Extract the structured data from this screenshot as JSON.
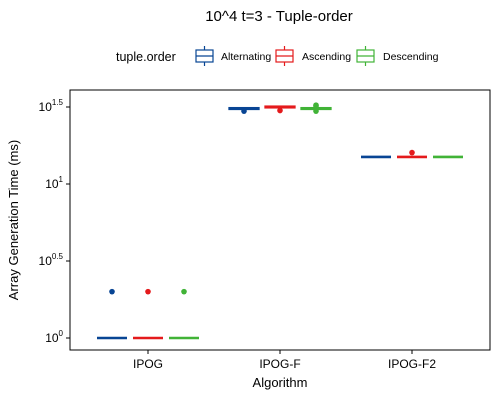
{
  "chart_data": {
    "type": "boxplot",
    "title": "10^4 t=3 - Tuple-order",
    "xlabel": "Algorithm",
    "ylabel": "Array Generation Time (ms)",
    "y_scale": "log10",
    "ylim_log10": [
      0,
      1.5
    ],
    "yticks": [
      {
        "base": "10",
        "exp": "0",
        "value_log10": 0
      },
      {
        "base": "10",
        "exp": "0.5",
        "value_log10": 0.5
      },
      {
        "base": "10",
        "exp": "1",
        "value_log10": 1
      },
      {
        "base": "10",
        "exp": "1.5",
        "value_log10": 1.5
      }
    ],
    "grid": false,
    "legend": {
      "title": "tuple.order",
      "placement": "top",
      "entries": [
        "Alternating",
        "Ascending",
        "Descending"
      ]
    },
    "categories": [
      "IPOG",
      "IPOG-F",
      "IPOG-F2"
    ],
    "series": [
      {
        "name": "Alternating",
        "color": "#084594",
        "boxes": [
          {
            "median_log10": 0.0,
            "q1_log10": 0.0,
            "q3_log10": 0.0,
            "outliers_log10": [
              0.301
            ]
          },
          {
            "median_log10": 1.49,
            "q1_log10": 1.484,
            "q3_log10": 1.496,
            "outliers_log10": [
              1.473
            ]
          },
          {
            "median_log10": 1.176,
            "q1_log10": 1.176,
            "q3_log10": 1.176,
            "outliers_log10": []
          }
        ]
      },
      {
        "name": "Ascending",
        "color": "#e41a1c",
        "boxes": [
          {
            "median_log10": 0.0,
            "q1_log10": 0.0,
            "q3_log10": 0.0,
            "outliers_log10": [
              0.301
            ]
          },
          {
            "median_log10": 1.5,
            "q1_log10": 1.494,
            "q3_log10": 1.506,
            "outliers_log10": [
              1.477
            ]
          },
          {
            "median_log10": 1.176,
            "q1_log10": 1.176,
            "q3_log10": 1.176,
            "outliers_log10": [
              1.204
            ]
          }
        ]
      },
      {
        "name": "Descending",
        "color": "#41b337",
        "boxes": [
          {
            "median_log10": 1e-09,
            "q1_log10": 0.0,
            "q3_log10": 0.0,
            "outliers_log10": [
              0.301
            ]
          },
          {
            "median_log10": 1.49,
            "q1_log10": 1.484,
            "q3_log10": 1.496,
            "outliers_log10": [
              1.512,
              1.506,
              1.473
            ]
          },
          {
            "median_log10": 1.176,
            "q1_log10": 1.176,
            "q3_log10": 1.176,
            "outliers_log10": []
          }
        ]
      }
    ]
  }
}
